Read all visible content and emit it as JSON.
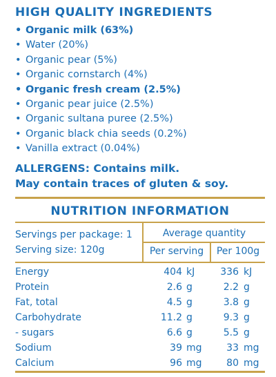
{
  "ingredients_heading": "HIGH QUALITY INGREDIENTS",
  "ingredients": [
    {
      "text": "Organic milk (63%)",
      "bold": true
    },
    {
      "text": "Water (20%)",
      "bold": false
    },
    {
      "text": "Organic pear (5%)",
      "bold": false
    },
    {
      "text": "Organic cornstarch (4%)",
      "bold": false
    },
    {
      "text": "Organic fresh cream (2.5%)",
      "bold": true
    },
    {
      "text": "Organic pear juice (2.5%)",
      "bold": false
    },
    {
      "text": "Organic sultana puree (2.5%)",
      "bold": false
    },
    {
      "text": "Organic black chia seeds (0.2%)",
      "bold": false
    },
    {
      "text": "Vanilla extract  (0.04%)",
      "bold": false
    }
  ],
  "bullet": "•",
  "allergens_line1": "ALLERGENS: Contains milk.",
  "allergens_line2": "May contain traces of gluten & soy.",
  "nutrition": {
    "title": "NUTRITION INFORMATION",
    "servings_per_package": "Servings per package: 1",
    "serving_size": "Serving size: 120g",
    "average_quantity": "Average quantity",
    "per_serving": "Per serving",
    "per_100g": "Per 100g",
    "rows": [
      {
        "name": "Energy",
        "serving": "404",
        "serving_unit": "kJ",
        "per100": "336",
        "per100_unit": "kJ"
      },
      {
        "name": "Protein",
        "serving": "2.6",
        "serving_unit": "g",
        "per100": "2.2",
        "per100_unit": "g"
      },
      {
        "name": "Fat, total",
        "serving": "4.5",
        "serving_unit": "g",
        "per100": "3.8",
        "per100_unit": "g"
      },
      {
        "name": "Carbohydrate",
        "serving": "11.2",
        "serving_unit": "g",
        "per100": "9.3",
        "per100_unit": "g"
      },
      {
        "name": "- sugars",
        "serving": "6.6",
        "serving_unit": "g",
        "per100": "5.5",
        "per100_unit": "g"
      },
      {
        "name": "Sodium",
        "serving": "39",
        "serving_unit": "mg",
        "per100": "33",
        "per100_unit": "mg"
      },
      {
        "name": "Calcium",
        "serving": "96",
        "serving_unit": "mg",
        "per100": "80",
        "per100_unit": "mg"
      }
    ]
  },
  "colors": {
    "text": "#1c6fb5",
    "rule": "#c8a24a"
  }
}
